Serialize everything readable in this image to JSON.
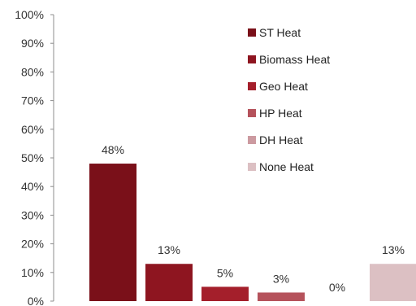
{
  "chart_data": {
    "type": "bar",
    "categories": [
      "ST Heat",
      "Biomass Heat",
      "Geo Heat",
      "HP Heat",
      "DH Heat",
      "None Heat"
    ],
    "values": [
      48,
      13,
      5,
      3,
      0,
      13
    ],
    "value_labels": [
      "48%",
      "13%",
      "5%",
      "3%",
      "0%",
      "13%"
    ],
    "colors": [
      "#7a1019",
      "#8e1520",
      "#a41f2b",
      "#b5525b",
      "#cc9aa0",
      "#dcc0c3"
    ],
    "ylim": [
      0,
      100
    ],
    "yticks": [
      "0%",
      "10%",
      "20%",
      "30%",
      "40%",
      "50%",
      "60%",
      "70%",
      "80%",
      "90%",
      "100%"
    ],
    "legend": {
      "position": "top-right",
      "entries": [
        "ST Heat",
        "Biomass Heat",
        "Geo Heat",
        "HP Heat",
        "DH Heat",
        "None Heat"
      ]
    },
    "grid": false
  }
}
